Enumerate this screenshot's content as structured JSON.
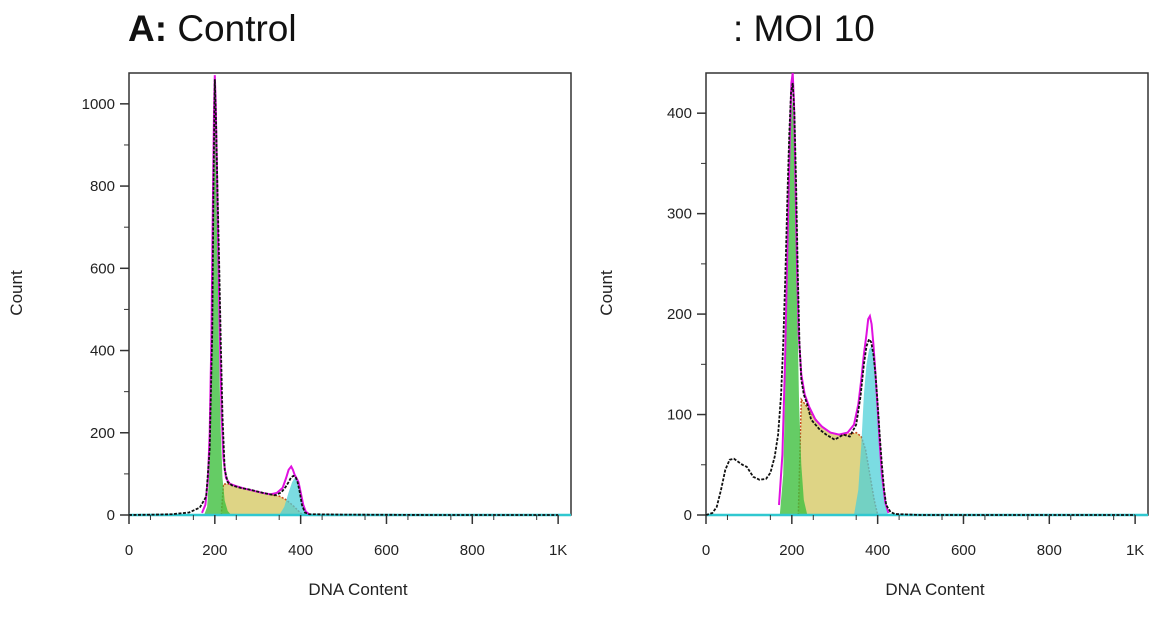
{
  "chart_data": [
    {
      "type": "area",
      "panel_letter": "A:",
      "title": "Control",
      "xlabel": "DNA Content",
      "ylabel": "Count",
      "xlim": [
        0,
        1030
      ],
      "ylim": [
        0,
        1075
      ],
      "x_ticks": [
        0,
        200,
        400,
        600,
        800,
        1000
      ],
      "x_tick_labels": [
        "0",
        "200",
        "400",
        "600",
        "800",
        "1K"
      ],
      "y_ticks": [
        0,
        200,
        400,
        600,
        800,
        1000
      ],
      "y_tick_labels": [
        "0",
        "200",
        "400",
        "600",
        "800",
        "1000"
      ],
      "colors": {
        "total_fit": "#e010e0",
        "data": "#111111",
        "g1": "#3fbf3f",
        "s_phase": "#d8cc70",
        "g2": "#4fd0d8",
        "s_edge": "#c84a1e",
        "baseline": "#30c8d0"
      },
      "series": [
        {
          "key": "data",
          "x": [
            0,
            60,
            100,
            140,
            165,
            180,
            188,
            194,
            197,
            200,
            203,
            206,
            210,
            214,
            218,
            223,
            230,
            240,
            260,
            280,
            300,
            320,
            340,
            355,
            365,
            372,
            378,
            383,
            388,
            393,
            398,
            403,
            410,
            420,
            500,
            700,
            1000
          ],
          "y": [
            0,
            1,
            2,
            6,
            18,
            45,
            160,
            450,
            800,
            1060,
            950,
            800,
            620,
            420,
            240,
            110,
            80,
            72,
            66,
            62,
            57,
            52,
            48,
            55,
            68,
            80,
            92,
            95,
            93,
            80,
            55,
            25,
            6,
            2,
            1,
            0,
            0
          ]
        },
        {
          "key": "total_fit",
          "x": [
            170,
            178,
            184,
            188,
            192,
            195,
            198,
            200,
            202,
            205,
            208,
            212,
            216,
            220,
            226,
            235,
            250,
            270,
            290,
            310,
            330,
            345,
            358,
            366,
            372,
            378,
            382,
            386,
            390,
            395,
            400,
            406,
            412,
            420
          ],
          "y": [
            5,
            25,
            90,
            200,
            430,
            720,
            980,
            1070,
            1000,
            830,
            640,
            420,
            240,
            140,
            90,
            76,
            70,
            64,
            59,
            54,
            50,
            54,
            66,
            90,
            110,
            118,
            110,
            98,
            90,
            80,
            55,
            25,
            8,
            2
          ]
        },
        {
          "key": "g1",
          "x": [
            175,
            182,
            186,
            190,
            194,
            197,
            200,
            203,
            206,
            210,
            214,
            218,
            223,
            230,
            238
          ],
          "y": [
            0,
            20,
            80,
            230,
            520,
            850,
            1040,
            880,
            650,
            380,
            200,
            90,
            35,
            10,
            0
          ]
        },
        {
          "key": "s_phase",
          "x": [
            215,
            220,
            230,
            250,
            270,
            290,
            310,
            330,
            350,
            365,
            380,
            395,
            405
          ],
          "y": [
            0,
            75,
            76,
            70,
            64,
            59,
            54,
            50,
            46,
            38,
            25,
            10,
            0
          ]
        },
        {
          "key": "g2",
          "x": [
            350,
            362,
            372,
            380,
            386,
            392,
            398,
            404,
            410,
            418
          ],
          "y": [
            0,
            20,
            55,
            80,
            90,
            85,
            65,
            35,
            12,
            0
          ]
        }
      ]
    },
    {
      "type": "area",
      "panel_letter": "",
      "title": ": MOI 10",
      "xlabel": "DNA Content",
      "ylabel": "Count",
      "xlim": [
        0,
        1030
      ],
      "ylim": [
        0,
        440
      ],
      "x_ticks": [
        0,
        200,
        400,
        600,
        800,
        1000
      ],
      "x_tick_labels": [
        "0",
        "200",
        "400",
        "600",
        "800",
        "1K"
      ],
      "y_ticks": [
        0,
        100,
        200,
        300,
        400
      ],
      "y_tick_labels": [
        "0",
        "100",
        "200",
        "300",
        "400"
      ],
      "colors": {
        "total_fit": "#e010e0",
        "data": "#111111",
        "g1": "#3fbf3f",
        "s_phase": "#d8cc70",
        "g2": "#4fd0d8",
        "s_edge": "#c84a1e",
        "baseline": "#30c8d0"
      },
      "series": [
        {
          "key": "data",
          "x": [
            0,
            15,
            25,
            35,
            45,
            55,
            65,
            75,
            85,
            95,
            110,
            125,
            140,
            150,
            160,
            168,
            175,
            180,
            185,
            190,
            194,
            198,
            202,
            206,
            210,
            214,
            218,
            222,
            228,
            236,
            245,
            255,
            265,
            280,
            300,
            320,
            335,
            350,
            360,
            368,
            374,
            380,
            385,
            390,
            395,
            400,
            405,
            410,
            415,
            420,
            430,
            440,
            500,
            700,
            1000
          ],
          "y": [
            0,
            2,
            8,
            25,
            45,
            55,
            56,
            53,
            50,
            48,
            38,
            35,
            36,
            42,
            58,
            80,
            120,
            170,
            240,
            320,
            380,
            420,
            430,
            400,
            330,
            240,
            170,
            135,
            120,
            110,
            95,
            90,
            85,
            80,
            75,
            80,
            78,
            90,
            118,
            150,
            168,
            175,
            172,
            160,
            140,
            110,
            78,
            50,
            25,
            10,
            3,
            1,
            0,
            0,
            0
          ]
        },
        {
          "key": "total_fit",
          "x": [
            170,
            178,
            184,
            190,
            195,
            199,
            202,
            205,
            208,
            212,
            216,
            222,
            230,
            240,
            255,
            270,
            290,
            310,
            330,
            345,
            355,
            362,
            368,
            374,
            378,
            382,
            386,
            390,
            395,
            400,
            405,
            410,
            418,
            425
          ],
          "y": [
            10,
            60,
            150,
            270,
            370,
            430,
            440,
            410,
            340,
            250,
            180,
            140,
            120,
            108,
            95,
            88,
            82,
            80,
            82,
            90,
            110,
            135,
            160,
            180,
            195,
            198,
            190,
            170,
            140,
            105,
            70,
            40,
            12,
            2
          ]
        },
        {
          "key": "g1",
          "x": [
            172,
            180,
            186,
            191,
            195,
            199,
            202,
            205,
            209,
            213,
            217,
            222,
            228,
            236
          ],
          "y": [
            0,
            40,
            150,
            280,
            360,
            400,
            415,
            380,
            300,
            200,
            110,
            50,
            15,
            0
          ]
        },
        {
          "key": "s_phase",
          "x": [
            215,
            222,
            235,
            250,
            270,
            290,
            310,
            330,
            350,
            362,
            372,
            382,
            392,
            400
          ],
          "y": [
            0,
            115,
            108,
            98,
            88,
            82,
            80,
            80,
            82,
            78,
            65,
            40,
            15,
            0
          ]
        },
        {
          "key": "g2",
          "x": [
            345,
            355,
            362,
            368,
            374,
            380,
            386,
            392,
            398,
            404,
            410,
            416,
            424
          ],
          "y": [
            0,
            25,
            70,
            120,
            150,
            165,
            168,
            155,
            125,
            85,
            45,
            15,
            0
          ]
        }
      ]
    }
  ]
}
